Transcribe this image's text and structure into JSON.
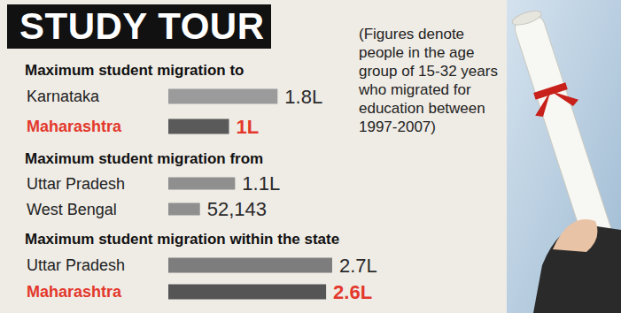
{
  "title": "STUDY TOUR",
  "note": "(Figures denote people in the age group of 15-32 years who migrated for education between 1997-2007)",
  "chart_data": [
    {
      "type": "bar",
      "title": "Maximum student migration to",
      "orientation": "horizontal",
      "categories": [
        "Karnataka",
        "Maharashtra"
      ],
      "values": [
        180000,
        100000
      ],
      "value_labels": [
        "1.8L",
        "1L"
      ],
      "colors": [
        "#9b9b9b",
        "#5a5a5a"
      ],
      "xlim": [
        0,
        400000
      ],
      "data_labels": true,
      "tick_labels": "y",
      "grid": false
    },
    {
      "type": "bar",
      "title": "Maximum student migration from",
      "orientation": "horizontal",
      "categories": [
        "Uttar Pradesh",
        "West Bengal"
      ],
      "values": [
        110000,
        52143
      ],
      "value_labels": [
        "1.1L",
        "52,143"
      ],
      "colors": [
        "#8f8f8f",
        "#8f8f8f"
      ],
      "xlim": [
        0,
        400000
      ],
      "data_labels": true,
      "tick_labels": "y",
      "grid": false
    },
    {
      "type": "bar",
      "title": "Maximum student migration within the state",
      "orientation": "horizontal",
      "categories": [
        "Uttar Pradesh",
        "Maharashtra"
      ],
      "values": [
        270000,
        260000
      ],
      "value_labels": [
        "2.7L",
        "2.6L"
      ],
      "colors": [
        "#7d7d7d",
        "#555555"
      ],
      "xlim": [
        0,
        400000
      ],
      "data_labels": true,
      "tick_labels": "y",
      "grid": false
    }
  ]
}
